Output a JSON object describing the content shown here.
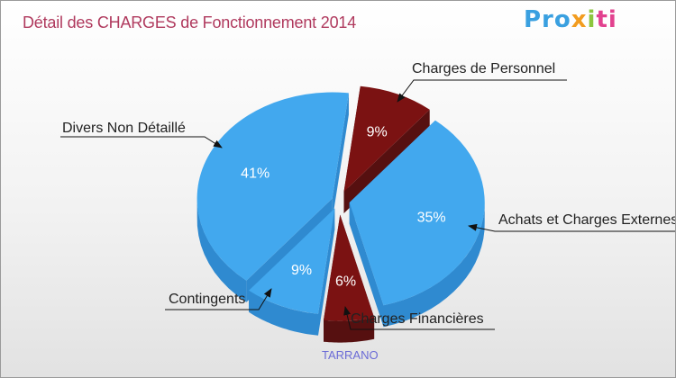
{
  "title": "Détail des CHARGES de Fonctionnement 2014",
  "logo": {
    "parts": [
      "Pro",
      "x",
      "i",
      "ti"
    ]
  },
  "commune": "TARRANO",
  "colors": {
    "blue_top": "#42a8ee",
    "blue_side": "#2f8ad0",
    "red_top": "#7b1212",
    "red_side": "#561010",
    "title": "#b03a5e"
  },
  "chart_data": {
    "type": "pie",
    "title": "Détail des CHARGES de Fonctionnement 2014",
    "slices": [
      {
        "label": "Charges de Personnel",
        "value": 9,
        "display": "9%",
        "color": "red"
      },
      {
        "label": "Achats et Charges Externes",
        "value": 35,
        "display": "35%",
        "color": "blue"
      },
      {
        "label": "Charges Financières",
        "value": 6,
        "display": "6%",
        "color": "red"
      },
      {
        "label": "Contingents",
        "value": 9,
        "display": "9%",
        "color": "blue"
      },
      {
        "label": "Divers Non Détaillé",
        "value": 41,
        "display": "41%",
        "color": "blue"
      }
    ]
  }
}
